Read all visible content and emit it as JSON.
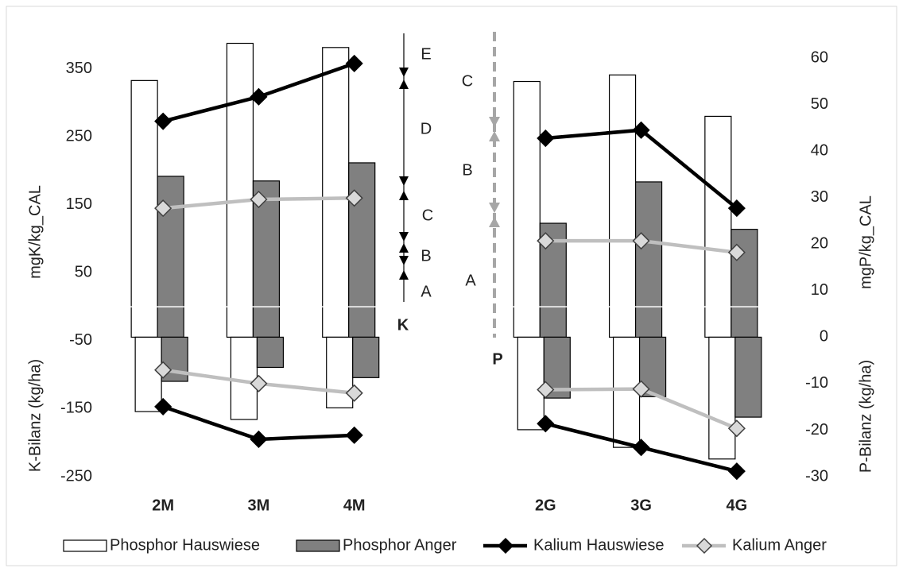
{
  "chart_data": {
    "type": "bar",
    "categories": [
      "2M",
      "3M",
      "4M",
      null,
      "2G",
      "3G",
      "4G"
    ],
    "series": [
      {
        "name": "Phosphor Hauswiese",
        "type": "bar",
        "axis": "y2",
        "color": "#ffffff",
        "values": [
          55.2,
          63.2,
          62.3,
          null,
          55.0,
          56.4,
          47.5
        ],
        "balance": [
          -16.0,
          -17.7,
          -15.2,
          null,
          -19.9,
          -23.7,
          -26.2
        ]
      },
      {
        "name": "Phosphor Anger",
        "type": "bar",
        "axis": "y2",
        "color": "#808080",
        "values": [
          34.6,
          33.6,
          37.5,
          null,
          24.5,
          33.4,
          23.2
        ],
        "balance": [
          -9.5,
          -6.5,
          -8.7,
          null,
          -13.1,
          -12.8,
          -17.2
        ]
      },
      {
        "name": "Kalium Hauswiese",
        "type": "line",
        "color": "#000000",
        "values": [
          273,
          309,
          358,
          null,
          248,
          260,
          145
        ],
        "balance": [
          -147,
          -195,
          -189,
          null,
          -172,
          -207,
          -242
        ]
      },
      {
        "name": "Kalium Anger",
        "type": "line",
        "color": "#bfbfbf",
        "values": [
          145,
          158,
          160,
          null,
          97,
          97,
          80
        ],
        "balance": [
          -93,
          -113,
          -127,
          null,
          -122,
          -121,
          -179
        ]
      }
    ],
    "ylabel": "mgK/kg_CAL",
    "ylabel_lower": "K-Bilanz (kg/ha)",
    "y2label": "mgP/kg_CAL",
    "y2label_lower": "P-Bilanz (kg/ha)",
    "ylim": [
      -250,
      400
    ],
    "yticks": [
      -250,
      -150,
      -50,
      50,
      150,
      250,
      350
    ],
    "y2lim": [
      -30,
      65
    ],
    "y2ticks": [
      -30,
      -20,
      -10,
      0,
      10,
      20,
      30,
      40,
      50,
      60
    ],
    "grid": true,
    "annotations": {
      "k_label": "K",
      "k_zones": [
        "E",
        "D",
        "C",
        "B",
        "A"
      ],
      "p_label": "P",
      "p_zones": [
        "C",
        "B",
        "A"
      ]
    }
  }
}
